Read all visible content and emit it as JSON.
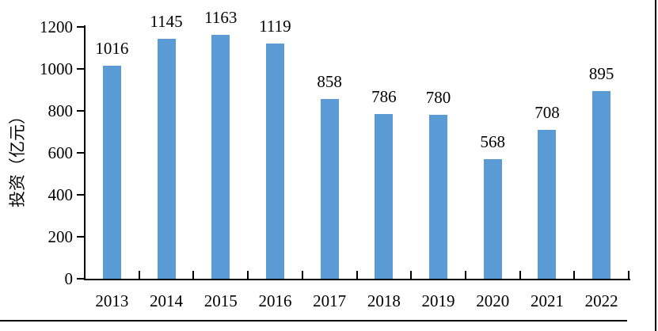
{
  "chart_data": {
    "type": "bar",
    "title": "",
    "xlabel": "",
    "ylabel": "投资（亿元）",
    "categories": [
      "2013",
      "2014",
      "2015",
      "2016",
      "2017",
      "2018",
      "2019",
      "2020",
      "2021",
      "2022"
    ],
    "values": [
      1016,
      1145,
      1163,
      1119,
      858,
      786,
      780,
      568,
      708,
      895
    ],
    "data_labels": [
      "1016",
      "1145",
      "1163",
      "1119",
      "858",
      "786",
      "780",
      "568",
      "708",
      "895"
    ],
    "ylim": [
      0,
      1200
    ],
    "yticks": [
      0,
      200,
      400,
      600,
      800,
      1000,
      1200
    ],
    "ytick_labels": [
      "0",
      "200",
      "400",
      "600",
      "800",
      "1000",
      "1200"
    ],
    "grid": false,
    "legend": "none",
    "show_data_labels": true,
    "bar_color": "#5B9BD5",
    "axis_color": "#000000",
    "text_color": "#000000"
  }
}
